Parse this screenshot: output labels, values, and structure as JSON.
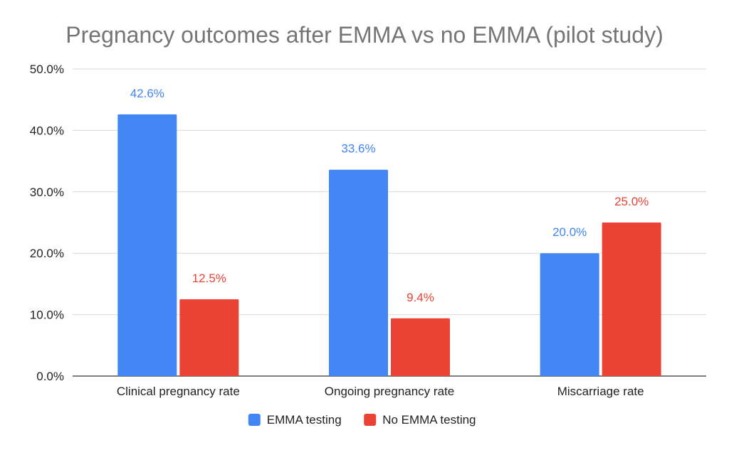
{
  "chart_data": {
    "type": "bar",
    "title": "Pregnancy outcomes after EMMA vs no EMMA (pilot study)",
    "categories": [
      "Clinical pregnancy rate",
      "Ongoing pregnancy rate",
      "Miscarriage rate"
    ],
    "series": [
      {
        "name": "EMMA testing",
        "color": "#4285f4",
        "values": [
          42.6,
          33.6,
          20.0
        ],
        "labels": [
          "42.6%",
          "33.6%",
          "20.0%"
        ]
      },
      {
        "name": "No EMMA testing",
        "color": "#ea4335",
        "values": [
          12.5,
          9.4,
          25.0
        ],
        "labels": [
          "12.5%",
          "9.4%",
          "25.0%"
        ]
      }
    ],
    "yticks": [
      "0.0%",
      "10.0%",
      "20.0%",
      "30.0%",
      "40.0%",
      "50.0%"
    ],
    "ylim": [
      0,
      50
    ],
    "xlabel": "",
    "ylabel": "",
    "grid": true,
    "legend_position": "bottom"
  }
}
